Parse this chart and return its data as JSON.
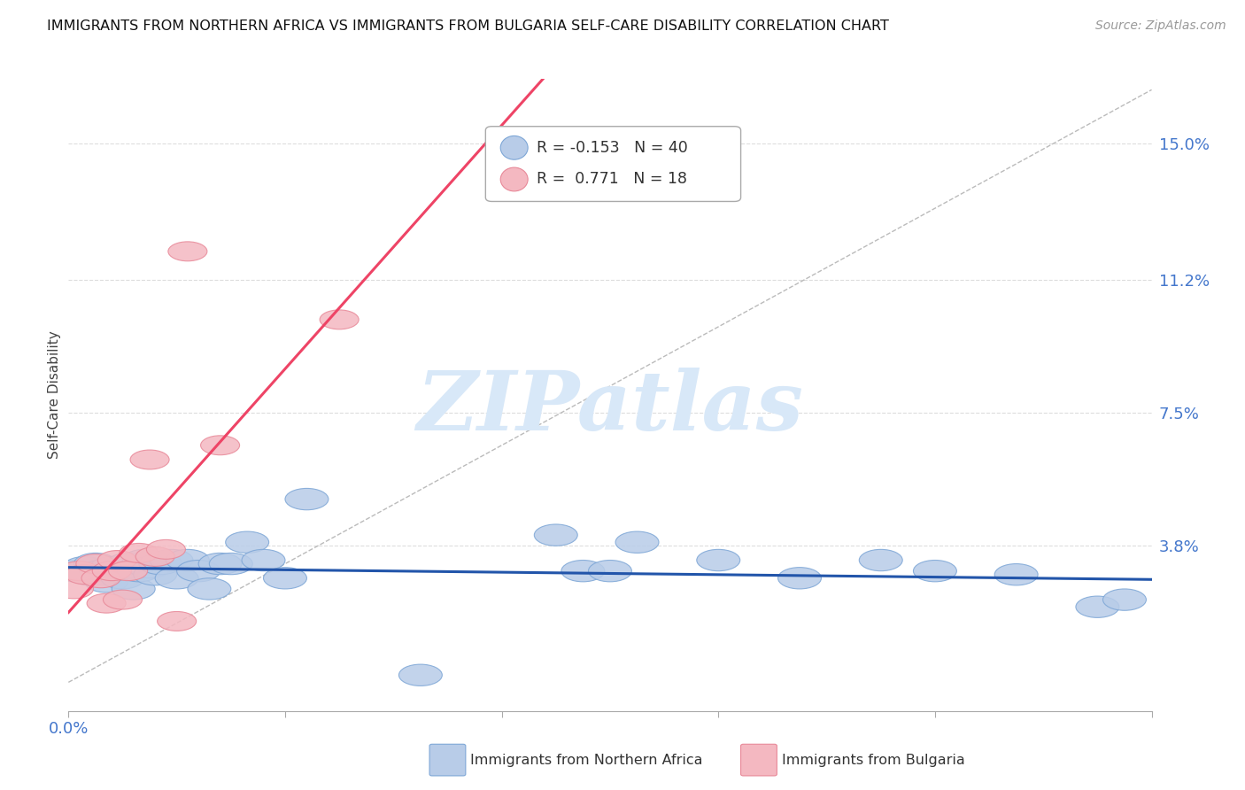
{
  "title": "IMMIGRANTS FROM NORTHERN AFRICA VS IMMIGRANTS FROM BULGARIA SELF-CARE DISABILITY CORRELATION CHART",
  "source": "Source: ZipAtlas.com",
  "ylabel": "Self-Care Disability",
  "ytick_labels": [
    "15.0%",
    "11.2%",
    "7.5%",
    "3.8%"
  ],
  "ytick_vals": [
    0.15,
    0.112,
    0.075,
    0.038
  ],
  "xlim": [
    0.0,
    0.2
  ],
  "ylim": [
    -0.008,
    0.168
  ],
  "legend1_label": "Immigrants from Northern Africa",
  "legend2_label": "Immigrants from Bulgaria",
  "R1": "-0.153",
  "N1": "40",
  "R2": "0.771",
  "N2": "18",
  "color_blue_fill": "#B8CCE8",
  "color_blue_edge": "#7DA6D6",
  "color_pink_fill": "#F4B8C1",
  "color_pink_edge": "#E88898",
  "color_blue_line": "#2255AA",
  "color_pink_line": "#EE4466",
  "color_diag": "#BBBBBB",
  "color_grid": "#DDDDDD",
  "blue_x": [
    0.001,
    0.003,
    0.004,
    0.005,
    0.006,
    0.007,
    0.007,
    0.008,
    0.009,
    0.01,
    0.011,
    0.012,
    0.013,
    0.014,
    0.015,
    0.016,
    0.017,
    0.019,
    0.02,
    0.022,
    0.024,
    0.026,
    0.028,
    0.03,
    0.033,
    0.036,
    0.04,
    0.044,
    0.065,
    0.09,
    0.095,
    0.105,
    0.12,
    0.135,
    0.15,
    0.16,
    0.175,
    0.19,
    0.195,
    0.1
  ],
  "blue_y": [
    0.031,
    0.032,
    0.03,
    0.033,
    0.031,
    0.03,
    0.028,
    0.032,
    0.031,
    0.029,
    0.033,
    0.026,
    0.031,
    0.034,
    0.032,
    0.03,
    0.033,
    0.034,
    0.029,
    0.034,
    0.031,
    0.026,
    0.033,
    0.033,
    0.039,
    0.034,
    0.029,
    0.051,
    0.002,
    0.041,
    0.031,
    0.039,
    0.034,
    0.029,
    0.034,
    0.031,
    0.03,
    0.021,
    0.023,
    0.031
  ],
  "pink_x": [
    0.001,
    0.002,
    0.003,
    0.005,
    0.006,
    0.007,
    0.008,
    0.009,
    0.01,
    0.011,
    0.013,
    0.015,
    0.016,
    0.018,
    0.02,
    0.022,
    0.028,
    0.05
  ],
  "pink_y": [
    0.026,
    0.031,
    0.03,
    0.033,
    0.029,
    0.022,
    0.031,
    0.034,
    0.023,
    0.031,
    0.036,
    0.062,
    0.035,
    0.037,
    0.017,
    0.12,
    0.066,
    0.101
  ],
  "watermark_text": "ZIPatlas",
  "watermark_color": "#D8E8F8"
}
